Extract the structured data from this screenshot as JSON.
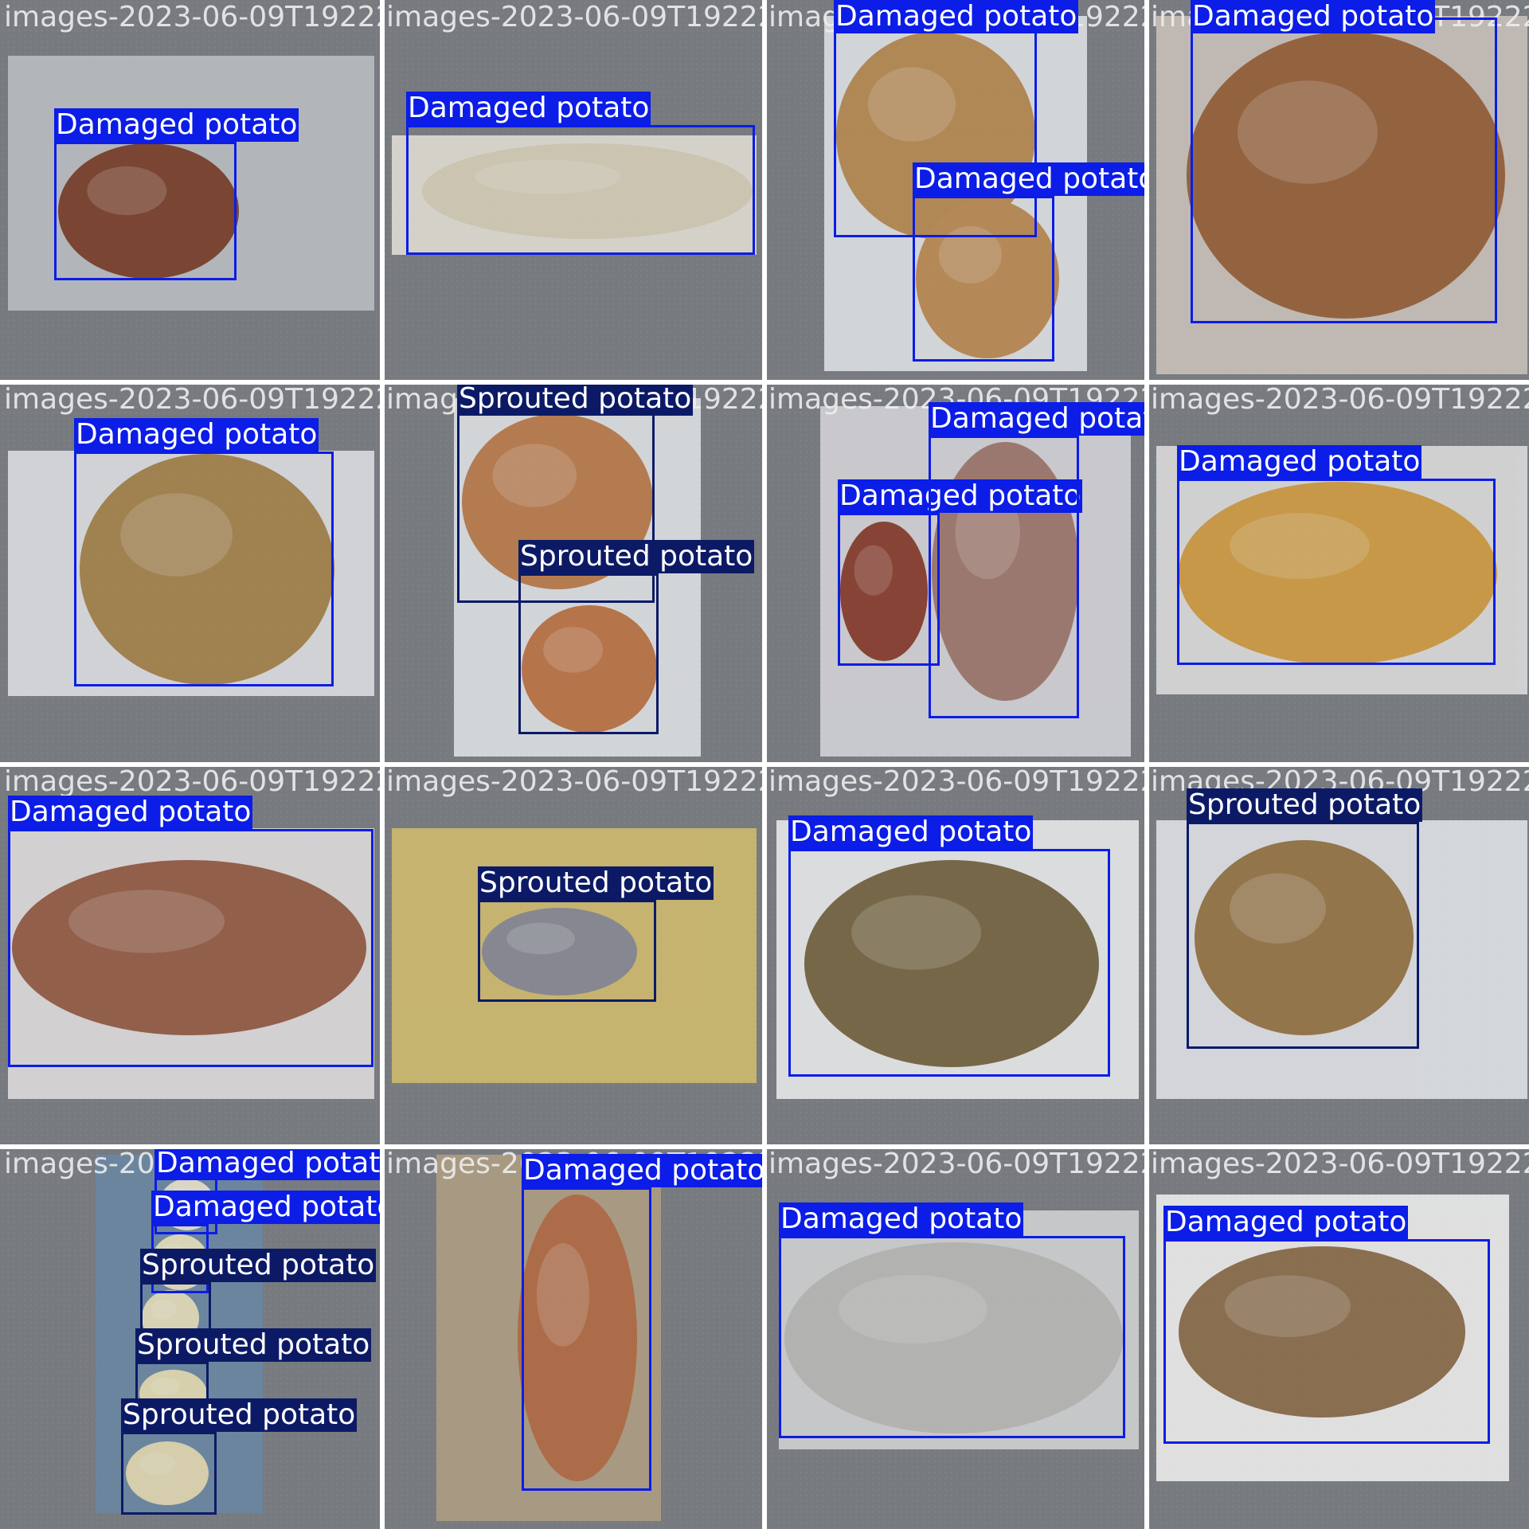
{
  "classes": {
    "damaged": {
      "name": "Damaged potato",
      "color": "#0b1de6"
    },
    "sprouted": {
      "name": "Sprouted potato",
      "color": "#0c1a66"
    }
  },
  "tiles": [
    {
      "file": "images-2023-06-09T192224i480",
      "scene": "#bfc3c6",
      "photo": [
        10,
        70,
        470,
        390
      ],
      "potatoes": [
        [
          73,
          180,
          300,
          350,
          "#7b3a22"
        ]
      ],
      "boxes": [
        [
          "damaged",
          68,
          178,
          297,
          352
        ]
      ]
    },
    {
      "file": "images-2023-06-09T192224i055",
      "scene": "#e9e5da",
      "photo": [
        492,
        170,
        950,
        320
      ],
      "potatoes": [
        [
          530,
          180,
          945,
          300,
          "#ddd5bb"
        ]
      ],
      "boxes": [
        [
          "damaged",
          510,
          157,
          948,
          320
        ]
      ]
    },
    {
      "file": "images-2023-06-09T192223i180",
      "scene": "#e7e9ec",
      "photo": [
        1035,
        20,
        1365,
        466
      ],
      "potatoes": [
        [
          1050,
          40,
          1300,
          300,
          "#bd8c4d"
        ],
        [
          1150,
          250,
          1330,
          450,
          "#c38c4f"
        ]
      ],
      "boxes": [
        [
          "damaged",
          1047,
          18,
          1302,
          298
        ],
        [
          "damaged",
          1146,
          246,
          1324,
          454
        ]
      ]
    },
    {
      "file": "images-2023-06-09T192222",
      "scene": "#d0c7bf",
      "photo": [
        1452,
        20,
        1918,
        470
      ],
      "potatoes": [
        [
          1490,
          40,
          1890,
          400,
          "#9a5e33"
        ]
      ],
      "boxes": [
        [
          "damaged",
          1495,
          22,
          1880,
          406
        ]
      ]
    },
    {
      "file": "images-2023-06-09T192224i412",
      "scene": "#e4e6e9",
      "photo": [
        10,
        566,
        470,
        874
      ],
      "potatoes": [
        [
          100,
          570,
          420,
          860,
          "#a98346"
        ]
      ],
      "boxes": [
        [
          "damaged",
          93,
          567,
          419,
          862
        ]
      ]
    },
    {
      "file": "images-2023-06-09T192223i802",
      "scene": "#e7e9ec",
      "photo": [
        570,
        500,
        880,
        950
      ],
      "potatoes": [
        [
          580,
          520,
          820,
          740,
          "#c27c47"
        ],
        [
          655,
          760,
          825,
          920,
          "#c5733f"
        ]
      ],
      "boxes": [
        [
          "sprouted",
          574,
          515,
          822,
          757
        ],
        [
          "sprouted",
          651,
          720,
          827,
          922
        ]
      ]
    },
    {
      "file": "images-2023-06-09T192222i604",
      "scene": "#dadadf",
      "photo": [
        1030,
        510,
        1420,
        950
      ],
      "potatoes": [
        [
          1055,
          655,
          1165,
          830,
          "#8b3725"
        ],
        [
          1170,
          555,
          1355,
          880,
          "#a4786c"
        ]
      ],
      "boxes": [
        [
          "damaged",
          1052,
          644,
          1180,
          836
        ],
        [
          "damaged",
          1166,
          547,
          1355,
          902
        ]
      ]
    },
    {
      "file": "images-2023-06-09T192221",
      "scene": "#e4e4e4",
      "photo": [
        1452,
        560,
        1918,
        872
      ],
      "potatoes": [
        [
          1480,
          605,
          1880,
          835,
          "#d89f3c"
        ]
      ],
      "boxes": [
        [
          "damaged",
          1478,
          601,
          1878,
          835
        ]
      ]
    },
    {
      "file": "images-2023-06-09T192224i110",
      "scene": "#e6e3e4",
      "photo": [
        10,
        1040,
        470,
        1380
      ],
      "potatoes": [
        [
          15,
          1080,
          460,
          1300,
          "#985a40"
        ]
      ],
      "boxes": [
        [
          "damaged",
          10,
          1041,
          469,
          1340
        ]
      ]
    },
    {
      "file": "images-2023-06-09T192223i674",
      "scene": "#d7c06c",
      "photo": [
        492,
        1040,
        950,
        1360
      ],
      "potatoes": [
        [
          605,
          1140,
          800,
          1250,
          "#8a8b96"
        ]
      ],
      "boxes": [
        [
          "sprouted",
          600,
          1130,
          824,
          1258
        ]
      ]
    },
    {
      "file": "images-2023-06-09T192222i544",
      "scene": "#f2f2f2",
      "photo": [
        975,
        1030,
        1430,
        1380
      ],
      "potatoes": [
        [
          1010,
          1080,
          1380,
          1340,
          "#77643e"
        ]
      ],
      "boxes": [
        [
          "damaged",
          990,
          1066,
          1394,
          1352
        ]
      ]
    },
    {
      "file": "images-2023-06-09T192221",
      "scene": "#e8eaee",
      "photo": [
        1452,
        1030,
        1918,
        1380
      ],
      "potatoes": [
        [
          1500,
          1055,
          1775,
          1300,
          "#9a7440"
        ]
      ],
      "boxes": [
        [
          "sprouted",
          1490,
          1032,
          1782,
          1317
        ]
      ]
    },
    {
      "file": "images-2023-06-09T19235",
      "scene": "#6a88a6",
      "photo": [
        120,
        1450,
        330,
        1900
      ],
      "potatoes": [
        [
          200,
          1480,
          270,
          1545,
          "#f0ebd0"
        ],
        [
          190,
          1550,
          262,
          1620,
          "#f0e8c4"
        ],
        [
          178,
          1620,
          250,
          1690,
          "#ede6c0"
        ],
        [
          175,
          1720,
          260,
          1780,
          "#ece4b8"
        ],
        [
          158,
          1810,
          262,
          1890,
          "#eae0b5"
        ]
      ],
      "boxes": [
        [
          "damaged",
          194,
          1475,
          273,
          1550
        ],
        [
          "damaged",
          190,
          1537,
          262,
          1624
        ],
        [
          "sprouted",
          176,
          1610,
          265,
          1700
        ],
        [
          "sprouted",
          170,
          1710,
          262,
          1785
        ],
        [
          "sprouted",
          152,
          1798,
          272,
          1902
        ]
      ]
    },
    {
      "file": "images-2023-06-09T19223i745",
      "scene": "#b3a183",
      "photo": [
        548,
        1450,
        830,
        1910
      ],
      "potatoes": [
        [
          650,
          1500,
          800,
          1860,
          "#b96a3e"
        ]
      ],
      "boxes": [
        [
          "damaged",
          655,
          1491,
          818,
          1872
        ]
      ]
    },
    {
      "file": "images-2023-06-09T192222i035",
      "scene": "#d8d8d8",
      "photo": [
        978,
        1520,
        1430,
        1820
      ],
      "potatoes": [
        [
          985,
          1560,
          1410,
          1800,
          "#bfc0bb"
        ]
      ],
      "boxes": [
        [
          "damaged",
          978,
          1552,
          1413,
          1806
        ]
      ]
    },
    {
      "file": "images-2023-06-09T192221i484",
      "scene": "#f7f6f5",
      "photo": [
        1452,
        1500,
        1895,
        1860
      ],
      "potatoes": [
        [
          1480,
          1565,
          1840,
          1780,
          "#8e6c46"
        ]
      ],
      "boxes": [
        [
          "damaged",
          1461,
          1556,
          1871,
          1813
        ]
      ]
    }
  ]
}
